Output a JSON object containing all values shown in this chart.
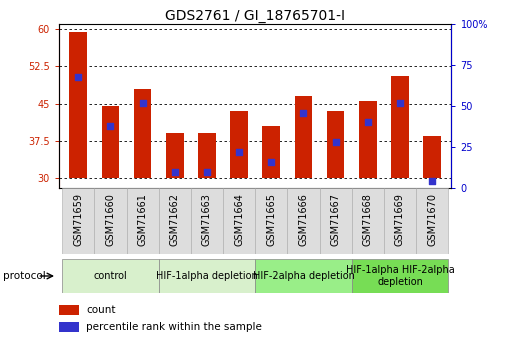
{
  "title": "GDS2761 / GI_18765701-I",
  "samples": [
    "GSM71659",
    "GSM71660",
    "GSM71661",
    "GSM71662",
    "GSM71663",
    "GSM71664",
    "GSM71665",
    "GSM71666",
    "GSM71667",
    "GSM71668",
    "GSM71669",
    "GSM71670"
  ],
  "counts": [
    59.5,
    44.5,
    48.0,
    39.0,
    39.0,
    43.5,
    40.5,
    46.5,
    43.5,
    45.5,
    50.5,
    38.5
  ],
  "percentile_ranks_pct": [
    68,
    38,
    52,
    10,
    10,
    22,
    16,
    46,
    28,
    40,
    52,
    4
  ],
  "ylim_left": [
    28,
    61
  ],
  "ylim_right": [
    0,
    100
  ],
  "yticks_left": [
    30,
    37.5,
    45,
    52.5,
    60
  ],
  "yticks_right": [
    0,
    25,
    50,
    75,
    100
  ],
  "bar_color": "#cc2200",
  "dot_color": "#3333cc",
  "bar_width": 0.55,
  "dot_size": 18,
  "protocol_groups": [
    {
      "label": "control",
      "start": 0,
      "end": 2,
      "color": "#d8f0cc"
    },
    {
      "label": "HIF-1alpha depletion",
      "start": 3,
      "end": 5,
      "color": "#d8f0cc"
    },
    {
      "label": "HIF-2alpha depletion",
      "start": 6,
      "end": 8,
      "color": "#99ee88"
    },
    {
      "label": "HIF-1alpha HIF-2alpha\ndepletion",
      "start": 9,
      "end": 11,
      "color": "#77dd55"
    }
  ],
  "protocol_label": "protocol",
  "legend_count_label": "count",
  "legend_pct_label": "percentile rank within the sample",
  "bg_color": "#ffffff",
  "grid_color": "#444444",
  "left_tick_color": "#cc2200",
  "right_tick_color": "#0000cc",
  "title_fontsize": 10,
  "tick_fontsize": 7,
  "label_fontsize": 7.5,
  "protocol_fontsize": 7
}
